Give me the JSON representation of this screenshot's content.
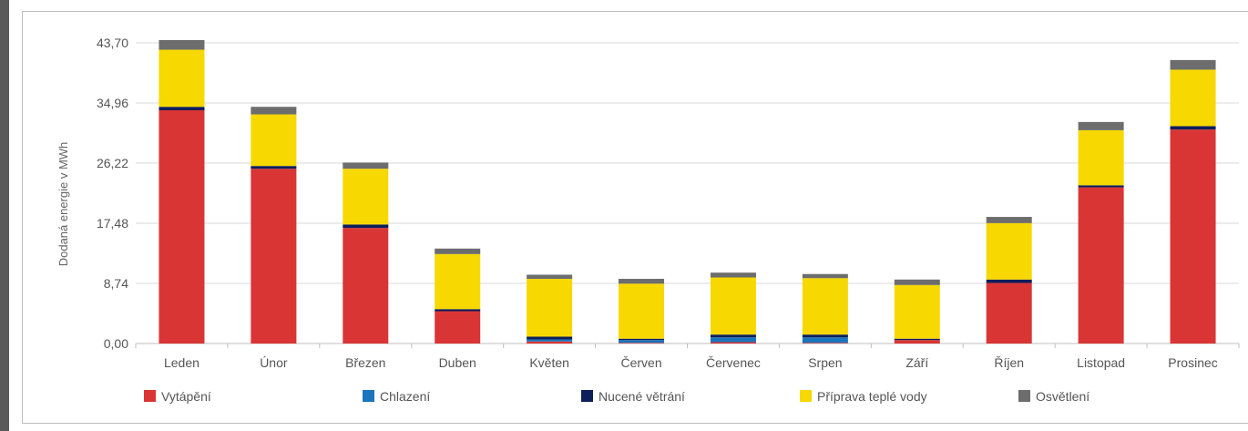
{
  "colors": {
    "Vytápění": "#d93535",
    "Chlazení": "#1b75bc",
    "Nucené větrání": "#0d1e5a",
    "Příprava teplé vody": "#f7d800",
    "Osvětlení": "#6d6d6d"
  },
  "chart_data": {
    "type": "bar",
    "stacked": true,
    "ylabel": "Dodaná energie v MWh",
    "ylim": [
      0,
      43.7
    ],
    "yticks": [
      "0,00",
      "8,74",
      "17,48",
      "26,22",
      "34,96",
      "43,70"
    ],
    "grid": true,
    "legend_position": "bottom",
    "categories": [
      "Leden",
      "Únor",
      "Březen",
      "Duben",
      "Květen",
      "Červen",
      "Červenec",
      "Srpen",
      "Září",
      "Říjen",
      "Listopad",
      "Prosinec"
    ],
    "series": [
      {
        "name": "Vytápění",
        "values": [
          33.9,
          25.4,
          16.8,
          4.7,
          0.3,
          0.1,
          0.2,
          0.1,
          0.5,
          8.8,
          22.7,
          31.1
        ]
      },
      {
        "name": "Chlazení",
        "values": [
          0.0,
          0.0,
          0.0,
          0.0,
          0.3,
          0.4,
          0.7,
          0.8,
          0.0,
          0.0,
          0.0,
          0.0
        ]
      },
      {
        "name": "Nucené větrání",
        "values": [
          0.5,
          0.4,
          0.5,
          0.3,
          0.4,
          0.2,
          0.4,
          0.4,
          0.2,
          0.5,
          0.3,
          0.5
        ]
      },
      {
        "name": "Příprava teplé vody",
        "values": [
          8.3,
          7.5,
          8.1,
          8.0,
          8.4,
          8.0,
          8.3,
          8.2,
          7.8,
          8.2,
          8.0,
          8.2
        ]
      },
      {
        "name": "Osvětlení",
        "values": [
          1.4,
          1.1,
          0.9,
          0.8,
          0.6,
          0.7,
          0.7,
          0.6,
          0.8,
          0.9,
          1.2,
          1.4
        ]
      }
    ]
  }
}
